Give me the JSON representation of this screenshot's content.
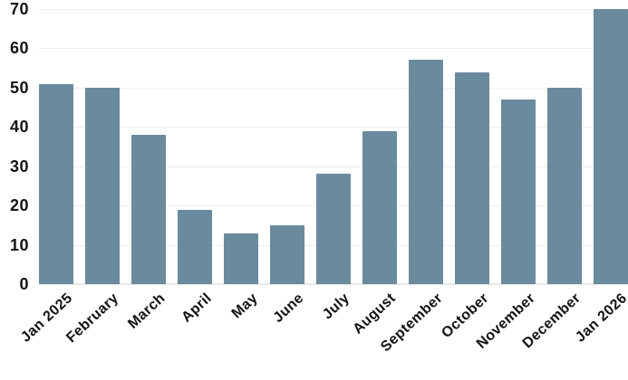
{
  "chart_data": {
    "type": "bar",
    "title": "",
    "xlabel": "",
    "ylabel": "",
    "categories": [
      "Jan 2025",
      "February",
      "March",
      "April",
      "May",
      "June",
      "July",
      "August",
      "September",
      "October",
      "November",
      "December",
      "Jan 2026"
    ],
    "values": [
      51,
      50,
      38,
      19,
      13,
      15,
      28,
      39,
      57,
      54,
      47,
      50,
      70
    ],
    "y_ticks": [
      0,
      10,
      20,
      30,
      40,
      50,
      60,
      70
    ],
    "ylim": [
      0,
      70
    ],
    "grid": "horizontal",
    "legend": "none",
    "x_label_rotation_deg": -43,
    "colors": {
      "bar": "#6a8a9e",
      "gridline": "#ededed",
      "baseline": "#e8e8e8",
      "axis_text": "#121212",
      "background": "#ffffff"
    }
  }
}
